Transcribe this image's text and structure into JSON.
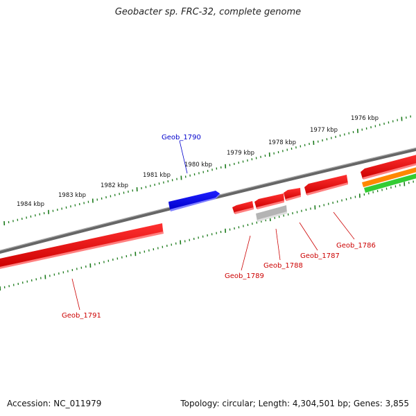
{
  "title": "Geobacter sp. FRC-32, complete genome",
  "footer": {
    "accession": "Accession: NC_011979",
    "summary": "Topology: circular; Length: 4,304,501 bp; Genes: 3,855"
  },
  "colors": {
    "backbone": "#777777",
    "forward_gene": "#0000ee",
    "reverse_gene": "#ee0000",
    "pseudo_gene": "#b4b4b4",
    "orange_feature": "#ff8800",
    "green_feature": "#33cc33",
    "tick": "#1a7a1a",
    "forward_label": "#0000cc",
    "reverse_label": "#cc0000"
  },
  "scale_labels": [
    "1984 kbp",
    "1983 kbp",
    "1982 kbp",
    "1981 kbp",
    "1980 kbp",
    "1979 kbp",
    "1978 kbp",
    "1977 kbp",
    "1976 kbp"
  ],
  "genes": [
    {
      "name": "Geob_1790",
      "strand": "forward",
      "color": "blue"
    },
    {
      "name": "Geob_1791",
      "strand": "reverse",
      "color": "red"
    },
    {
      "name": "Geob_1789",
      "strand": "reverse",
      "color": "red"
    },
    {
      "name": "Geob_1788",
      "strand": "reverse",
      "color": "grey"
    },
    {
      "name": "Geob_1787",
      "strand": "reverse",
      "color": "red"
    },
    {
      "name": "Geob_1786",
      "strand": "reverse",
      "color": "red"
    }
  ]
}
